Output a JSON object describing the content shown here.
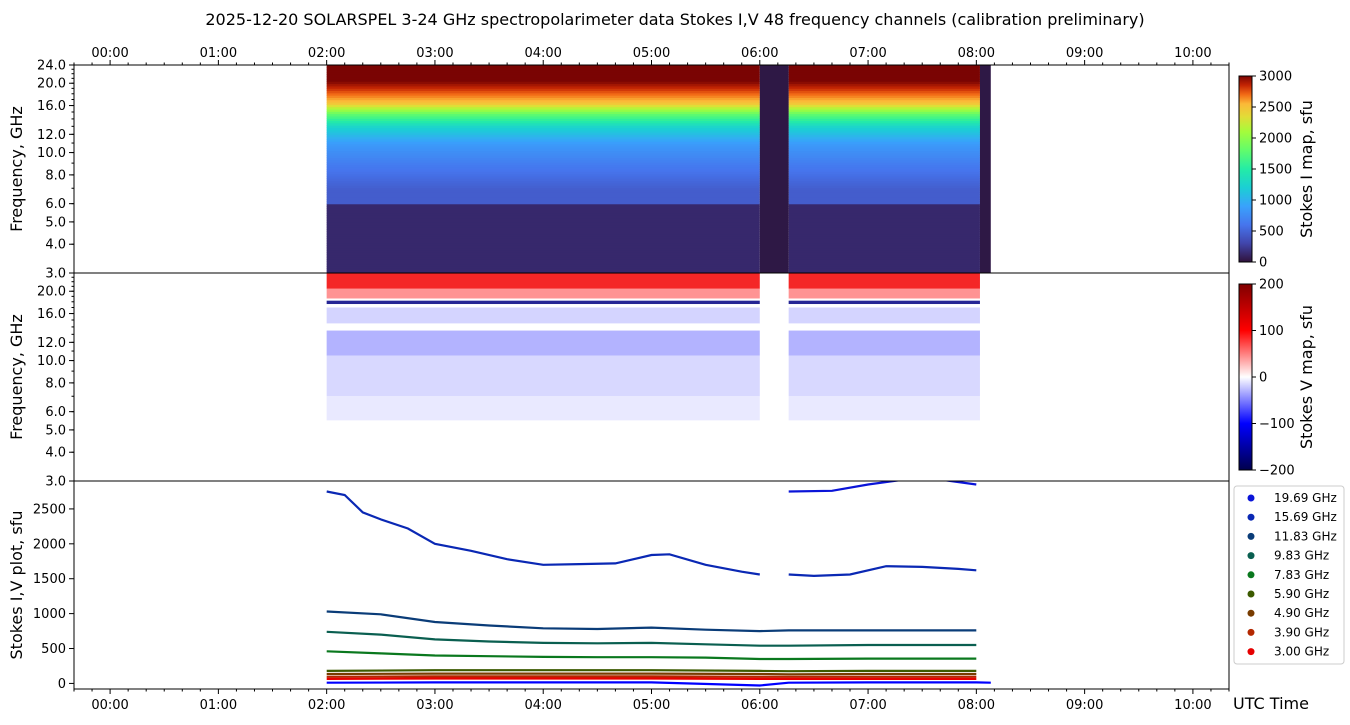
{
  "title": "2025-12-20  SOLARSPEL  3-24 GHz spectropolarimeter data   Stokes I,V   48 frequency channels   (calibration preliminary)",
  "chart_data": [
    {
      "type": "heatmap",
      "panel": "stokes-i-map",
      "ylabel": "Frequency, GHz",
      "colorbar_label": "Stokes I map, sfu",
      "colorbar_range": [
        0,
        3000
      ],
      "colorbar_ticks": [
        0,
        500,
        1000,
        1500,
        2000,
        2500,
        3000
      ],
      "x_range_utc": [
        "23:40",
        "10:20"
      ],
      "x_ticks": [
        "00:00",
        "01:00",
        "02:00",
        "03:00",
        "04:00",
        "05:00",
        "06:00",
        "07:00",
        "08:00",
        "09:00",
        "10:00"
      ],
      "y_ticks": [
        "3.0",
        "4.0",
        "5.0",
        "6.0",
        "8.0",
        "10.0",
        "12.0",
        "16.0",
        "20.0",
        "24.0"
      ],
      "data_intervals_utc": [
        [
          "02:00",
          "06:00"
        ],
        [
          "06:16",
          "08:02"
        ]
      ],
      "low_signal_intervals_utc": [
        [
          "06:00",
          "06:16"
        ],
        [
          "08:02",
          "08:08"
        ]
      ],
      "band_levels_sfu": [
        {
          "freq_from": 3.0,
          "freq_to": 6.0,
          "value": 130
        },
        {
          "freq_from": 6.0,
          "freq_to": 8.0,
          "value": 450
        },
        {
          "freq_from": 8.0,
          "freq_to": 10.0,
          "value": 650
        },
        {
          "freq_from": 10.0,
          "freq_to": 12.0,
          "value": 850
        },
        {
          "freq_from": 12.0,
          "freq_to": 14.0,
          "value": 1250
        },
        {
          "freq_from": 14.0,
          "freq_to": 15.5,
          "value": 1800
        },
        {
          "freq_from": 15.5,
          "freq_to": 17.5,
          "value": 2500
        },
        {
          "freq_from": 17.5,
          "freq_to": 24.0,
          "value": 3000
        }
      ]
    },
    {
      "type": "heatmap",
      "panel": "stokes-v-map",
      "ylabel": "Frequency, GHz",
      "colorbar_label": "Stokes V map, sfu",
      "colorbar_range": [
        -200,
        200
      ],
      "colorbar_ticks": [
        -200,
        -100,
        0,
        100,
        200
      ],
      "x_range_utc": [
        "23:40",
        "10:20"
      ],
      "y_ticks": [
        "3.0",
        "4.0",
        "5.0",
        "6.0",
        "8.0",
        "10.0",
        "12.0",
        "16.0",
        "20.0"
      ],
      "data_intervals_utc": [
        [
          "02:00",
          "06:00"
        ],
        [
          "06:16",
          "08:02"
        ]
      ],
      "band_levels_sfu": [
        {
          "freq_from": 20.5,
          "freq_to": 24.0,
          "value": 110
        },
        {
          "freq_from": 18.6,
          "freq_to": 20.5,
          "value": 50
        },
        {
          "freq_from": 17.6,
          "freq_to": 18.2,
          "value": -170
        },
        {
          "freq_from": 14.5,
          "freq_to": 17.0,
          "value": -20
        },
        {
          "freq_from": 10.5,
          "freq_to": 13.5,
          "value": -35
        },
        {
          "freq_from": 7.0,
          "freq_to": 10.5,
          "value": -18
        },
        {
          "freq_from": 5.5,
          "freq_to": 7.0,
          "value": -10
        }
      ]
    },
    {
      "type": "line",
      "panel": "stokes-iv-plot",
      "ylabel": "Stokes I,V plot, sfu",
      "xlabel": "UTC Time",
      "ylim": [
        -80,
        2900
      ],
      "y_ticks": [
        0,
        500,
        1000,
        1500,
        2000,
        2500
      ],
      "legend_position": "right",
      "series": [
        {
          "name": "19.69 GHz",
          "color": "#0a14d8",
          "x": [
            "02:00",
            "02:12",
            "02:24",
            "02:36",
            "02:48",
            "03:00",
            "03:30",
            "04:00",
            "04:30",
            "05:00",
            "05:20",
            "05:40",
            "06:00"
          ],
          "y": [
            2920,
            2920,
            2940,
            2950,
            2950,
            2950,
            2960,
            2950,
            2960,
            2950,
            2960,
            2960,
            2960
          ]
        },
        {
          "name": "19.69 GHz",
          "color": "#0a14d8",
          "x": [
            "06:16",
            "06:40",
            "07:00",
            "07:20",
            "07:40",
            "08:00"
          ],
          "y": [
            2750,
            2760,
            2850,
            2920,
            2920,
            2850
          ]
        },
        {
          "name": "15.69 GHz",
          "color": "#0a28b4",
          "x": [
            "02:00",
            "02:10",
            "02:20",
            "02:30",
            "02:45",
            "03:00",
            "03:20",
            "03:40",
            "04:00",
            "04:20",
            "04:40",
            "05:00",
            "05:10",
            "05:30",
            "05:50",
            "06:00"
          ],
          "y": [
            2750,
            2700,
            2450,
            2350,
            2220,
            2000,
            1900,
            1780,
            1700,
            1710,
            1720,
            1840,
            1850,
            1700,
            1600,
            1560
          ],
          "labels": []
        },
        {
          "name": "15.69 GHz",
          "color": "#0a28b4",
          "x": [
            "06:16",
            "06:30",
            "06:50",
            "07:10",
            "07:30",
            "07:50",
            "08:00"
          ],
          "y": [
            1560,
            1540,
            1560,
            1680,
            1670,
            1640,
            1620
          ]
        },
        {
          "name": "11.83 GHz",
          "color": "#0a3c78",
          "x": [
            "02:00",
            "02:30",
            "03:00",
            "03:30",
            "04:00",
            "04:30",
            "05:00",
            "05:30",
            "06:00",
            "06:16",
            "07:00",
            "08:00"
          ],
          "y": [
            1030,
            990,
            880,
            830,
            790,
            780,
            800,
            770,
            750,
            760,
            760,
            760
          ]
        },
        {
          "name": "9.83 GHz",
          "color": "#0a5f50",
          "x": [
            "02:00",
            "02:30",
            "03:00",
            "03:30",
            "04:00",
            "04:30",
            "05:00",
            "05:30",
            "06:00",
            "06:16",
            "07:00",
            "08:00"
          ],
          "y": [
            740,
            700,
            630,
            600,
            580,
            575,
            580,
            560,
            540,
            540,
            550,
            550
          ]
        },
        {
          "name": "7.83 GHz",
          "color": "#0a781e",
          "x": [
            "02:00",
            "02:30",
            "03:00",
            "03:30",
            "04:00",
            "04:30",
            "05:00",
            "05:30",
            "06:00",
            "06:16",
            "07:00",
            "08:00"
          ],
          "y": [
            460,
            430,
            400,
            390,
            380,
            375,
            375,
            370,
            350,
            350,
            355,
            355
          ]
        },
        {
          "name": "5.90 GHz",
          "color": "#3c5a00",
          "x": [
            "02:00",
            "03:00",
            "04:00",
            "05:00",
            "06:00",
            "06:16",
            "07:00",
            "08:00"
          ],
          "y": [
            180,
            190,
            190,
            190,
            180,
            175,
            180,
            180
          ]
        },
        {
          "name": "4.90 GHz",
          "color": "#783c00",
          "x": [
            "02:00",
            "03:00",
            "04:00",
            "05:00",
            "06:00",
            "06:16",
            "07:00",
            "08:00"
          ],
          "y": [
            135,
            140,
            140,
            140,
            135,
            130,
            135,
            135
          ]
        },
        {
          "name": "3.90 GHz",
          "color": "#b42800",
          "x": [
            "02:00",
            "03:00",
            "04:00",
            "05:00",
            "06:00",
            "06:16",
            "07:00",
            "08:00"
          ],
          "y": [
            95,
            100,
            100,
            100,
            95,
            95,
            95,
            95
          ]
        },
        {
          "name": "3.00 GHz",
          "color": "#e60000",
          "x": [
            "02:00",
            "03:00",
            "04:00",
            "05:00",
            "06:00",
            "06:16",
            "07:00",
            "08:00"
          ],
          "y": [
            65,
            70,
            70,
            70,
            65,
            65,
            65,
            65
          ]
        },
        {
          "name": "Stokes V",
          "color": "#0000ff",
          "x": [
            "02:00",
            "03:00",
            "04:00",
            "05:00",
            "06:00",
            "06:16",
            "07:00",
            "08:00",
            "08:08"
          ],
          "y": [
            10,
            15,
            15,
            15,
            -30,
            10,
            15,
            15,
            10
          ]
        }
      ],
      "legend": [
        {
          "label": "19.69 GHz",
          "color": "#0a14d8"
        },
        {
          "label": "15.69 GHz",
          "color": "#0a28b4"
        },
        {
          "label": "11.83 GHz",
          "color": "#0a3c78"
        },
        {
          "label": "9.83 GHz",
          "color": "#0a5f50"
        },
        {
          "label": "7.83 GHz",
          "color": "#0a781e"
        },
        {
          "label": "5.90 GHz",
          "color": "#3c5a00"
        },
        {
          "label": "4.90 GHz",
          "color": "#783c00"
        },
        {
          "label": "3.90 GHz",
          "color": "#b42800"
        },
        {
          "label": "3.00 GHz",
          "color": "#e60000"
        }
      ]
    }
  ]
}
